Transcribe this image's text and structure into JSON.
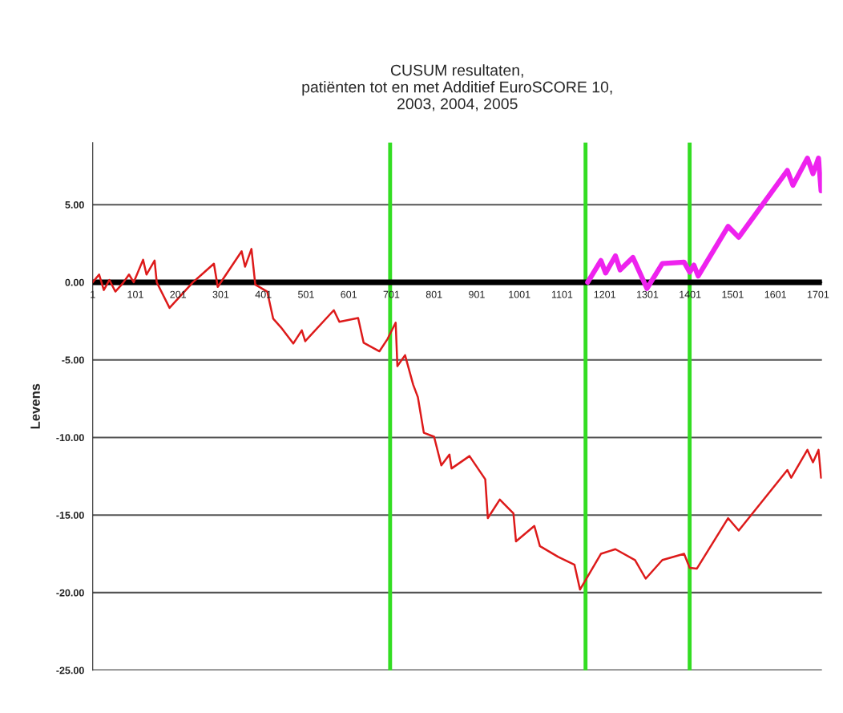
{
  "chart_data": {
    "type": "line",
    "title": "CUSUM resultaten,\npatiënten tot en met Additief EuroSCORE 10,\n2003, 2004, 2005",
    "ylabel": "Levens",
    "xlim": [
      1,
      1710
    ],
    "xticks": [
      1,
      101,
      201,
      301,
      401,
      501,
      601,
      701,
      801,
      901,
      1001,
      1101,
      1201,
      1301,
      1401,
      1501,
      1601,
      1701
    ],
    "ylim": [
      -25,
      9
    ],
    "yticks": [
      {
        "value": 5,
        "label": "5.00"
      },
      {
        "value": 0,
        "label": "0.00"
      },
      {
        "value": -5,
        "label": "-5.00"
      },
      {
        "value": -10,
        "label": "-10.00"
      },
      {
        "value": -15,
        "label": "-15.00"
      },
      {
        "value": -20,
        "label": "-20.00"
      },
      {
        "value": -25,
        "label": "-25.00"
      }
    ],
    "grid": "y",
    "marker": "none",
    "line_style": "solid",
    "series": [
      {
        "color": "#dd1a1a",
        "x": [
          1,
          16,
          27,
          40,
          54,
          72,
          86,
          97,
          119,
          127,
          146,
          151,
          181,
          236,
          285,
          294,
          350,
          358,
          373,
          382,
          410,
          424,
          442,
          471,
          491,
          499,
          566,
          579,
          623,
          636,
          673,
          692,
          711,
          715,
          733,
          752,
          763,
          777,
          801,
          818,
          837,
          842,
          884,
          921,
          927,
          955,
          987,
          993,
          1036,
          1049,
          1092,
          1130,
          1143,
          1192,
          1226,
          1272,
          1297,
          1336,
          1387,
          1400,
          1417,
          1490,
          1515,
          1629,
          1638,
          1676,
          1689,
          1702,
          1708
        ],
        "values": [
          0,
          0.5,
          -0.5,
          0.15,
          -0.6,
          -0.05,
          0.5,
          0,
          1.45,
          0.5,
          1.4,
          0,
          -1.65,
          0,
          1.2,
          -0.3,
          2.0,
          1.0,
          2.15,
          -0.15,
          -0.6,
          -2.35,
          -2.9,
          -3.95,
          -3.1,
          -3.8,
          -1.8,
          -2.55,
          -2.3,
          -3.9,
          -4.45,
          -3.65,
          -2.6,
          -5.4,
          -4.7,
          -6.6,
          -7.4,
          -9.7,
          -9.95,
          -11.8,
          -11.1,
          -12,
          -11.2,
          -12.7,
          -15.2,
          -14,
          -14.9,
          -16.7,
          -15.7,
          -17,
          -17.7,
          -18.2,
          -19.8,
          -17.5,
          -17.2,
          -17.9,
          -19.1,
          -17.9,
          -17.5,
          -18.4,
          -18.45,
          -15.2,
          -16,
          -12.1,
          -12.6,
          -10.8,
          -11.6,
          -10.8,
          -12.6
        ]
      },
      {
        "color": "#ee22ee",
        "x": [
          1161,
          1192,
          1203,
          1226,
          1237,
          1267,
          1300,
          1336,
          1387,
          1400,
          1410,
          1420,
          1490,
          1515,
          1629,
          1642,
          1676,
          1689,
          1702,
          1708
        ],
        "values": [
          0,
          1.4,
          0.6,
          1.7,
          0.8,
          1.6,
          -0.4,
          1.2,
          1.3,
          0.65,
          1.1,
          0.4,
          3.6,
          2.9,
          7.2,
          6.25,
          8.0,
          7.0,
          8.0,
          5.9
        ]
      }
    ],
    "ref_lines": [
      {
        "axis": "y",
        "value": 0,
        "color": "#000000"
      },
      {
        "axis": "x",
        "value": 698,
        "color": "#33dd22"
      },
      {
        "axis": "x",
        "value": 1156,
        "color": "#33dd22"
      },
      {
        "axis": "x",
        "value": 1400,
        "color": "#33dd22"
      }
    ]
  }
}
